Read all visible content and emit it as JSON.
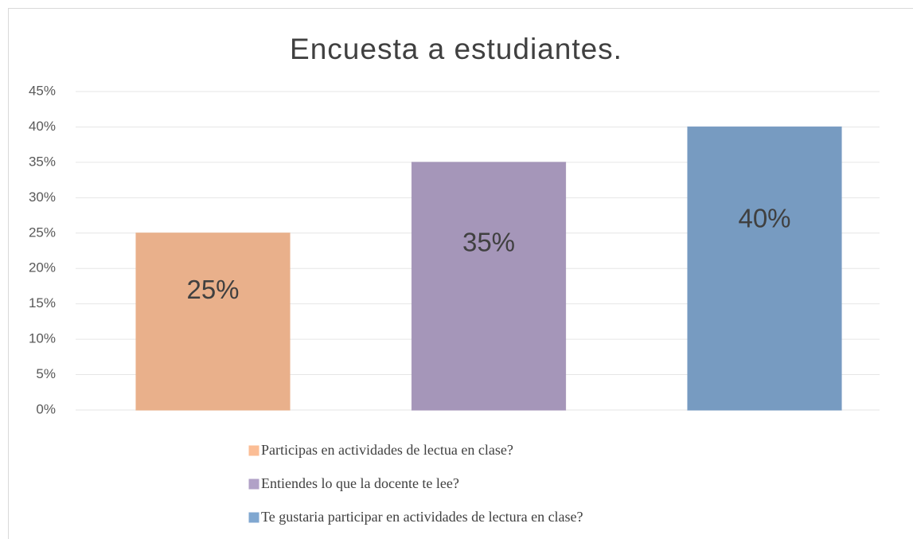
{
  "chart_data": {
    "type": "bar",
    "title": "Encuesta a estudiantes.",
    "categories": [
      null
    ],
    "series": [
      {
        "name": "Participas en actividades de lectua en clase?",
        "color": "#fbbd95",
        "values": [
          25
        ],
        "value_labels": [
          "25%"
        ]
      },
      {
        "name": "Entiendes lo que la docente te lee?",
        "color": "#b1a1c7",
        "values": [
          35
        ],
        "value_labels": [
          "35%"
        ]
      },
      {
        "name": "Te gustaria participar en actividades de lectura en clase?",
        "color": "#80a7d0",
        "values": [
          40
        ],
        "value_labels": [
          "40%"
        ]
      }
    ],
    "ylim": [
      0,
      45
    ],
    "yticks": [
      {
        "value": 0,
        "label": "0%"
      },
      {
        "value": 5,
        "label": "5%"
      },
      {
        "value": 10,
        "label": "10%"
      },
      {
        "value": 15,
        "label": "15%"
      },
      {
        "value": 20,
        "label": "20%"
      },
      {
        "value": 25,
        "label": "25%"
      },
      {
        "value": 30,
        "label": "30%"
      },
      {
        "value": 35,
        "label": "35%"
      },
      {
        "value": 40,
        "label": "40%"
      },
      {
        "value": 45,
        "label": "45%"
      }
    ],
    "grid": true,
    "legend": "bottom"
  }
}
